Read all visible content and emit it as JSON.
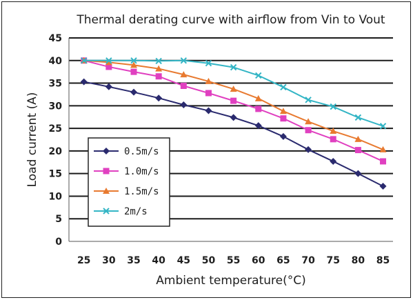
{
  "chart_data": {
    "type": "line",
    "title": "Thermal derating curve with airflow from Vin to Vout",
    "xlabel": "Ambient temperature(°C)",
    "ylabel": "Load current (A)",
    "x": [
      25,
      30,
      35,
      40,
      45,
      50,
      55,
      60,
      65,
      70,
      75,
      80,
      85
    ],
    "x_tick_labels": [
      "25",
      "30",
      "35",
      "40",
      "45",
      "50",
      "55",
      "60",
      "65",
      "70",
      "75",
      "80",
      "85"
    ],
    "xlim": [
      22,
      87
    ],
    "ylim": [
      0,
      45
    ],
    "y_ticks": [
      0,
      5,
      10,
      15,
      20,
      25,
      30,
      35,
      40,
      45
    ],
    "y_tick_labels": [
      "0",
      "5",
      "10",
      "15",
      "20",
      "25",
      "30",
      "35",
      "40",
      "45"
    ],
    "grid": true,
    "legend_position": "bottom-left",
    "series": [
      {
        "name": "0.5m/s",
        "color": "#2a2a6e",
        "marker": "diamond",
        "values": [
          35.3,
          34.2,
          33.0,
          31.7,
          30.2,
          28.9,
          27.4,
          25.6,
          23.2,
          20.3,
          17.7,
          15.0,
          12.2
        ]
      },
      {
        "name": "1.0m/s",
        "color": "#e040c0",
        "marker": "square",
        "values": [
          40.0,
          38.6,
          37.5,
          36.5,
          34.4,
          32.8,
          31.1,
          29.3,
          27.2,
          24.6,
          22.6,
          20.2,
          17.7
        ]
      },
      {
        "name": "1.5m/s",
        "color": "#e87a30",
        "marker": "triangle",
        "values": [
          40.0,
          39.6,
          39.0,
          38.2,
          36.9,
          35.4,
          33.7,
          31.6,
          28.8,
          26.5,
          24.4,
          22.6,
          20.3
        ]
      },
      {
        "name": "2m/s",
        "color": "#33b5c5",
        "marker": "x",
        "values": [
          40.0,
          40.0,
          40.0,
          39.9,
          40.0,
          39.4,
          38.5,
          36.7,
          34.1,
          31.3,
          29.8,
          27.4,
          25.5
        ]
      }
    ]
  }
}
